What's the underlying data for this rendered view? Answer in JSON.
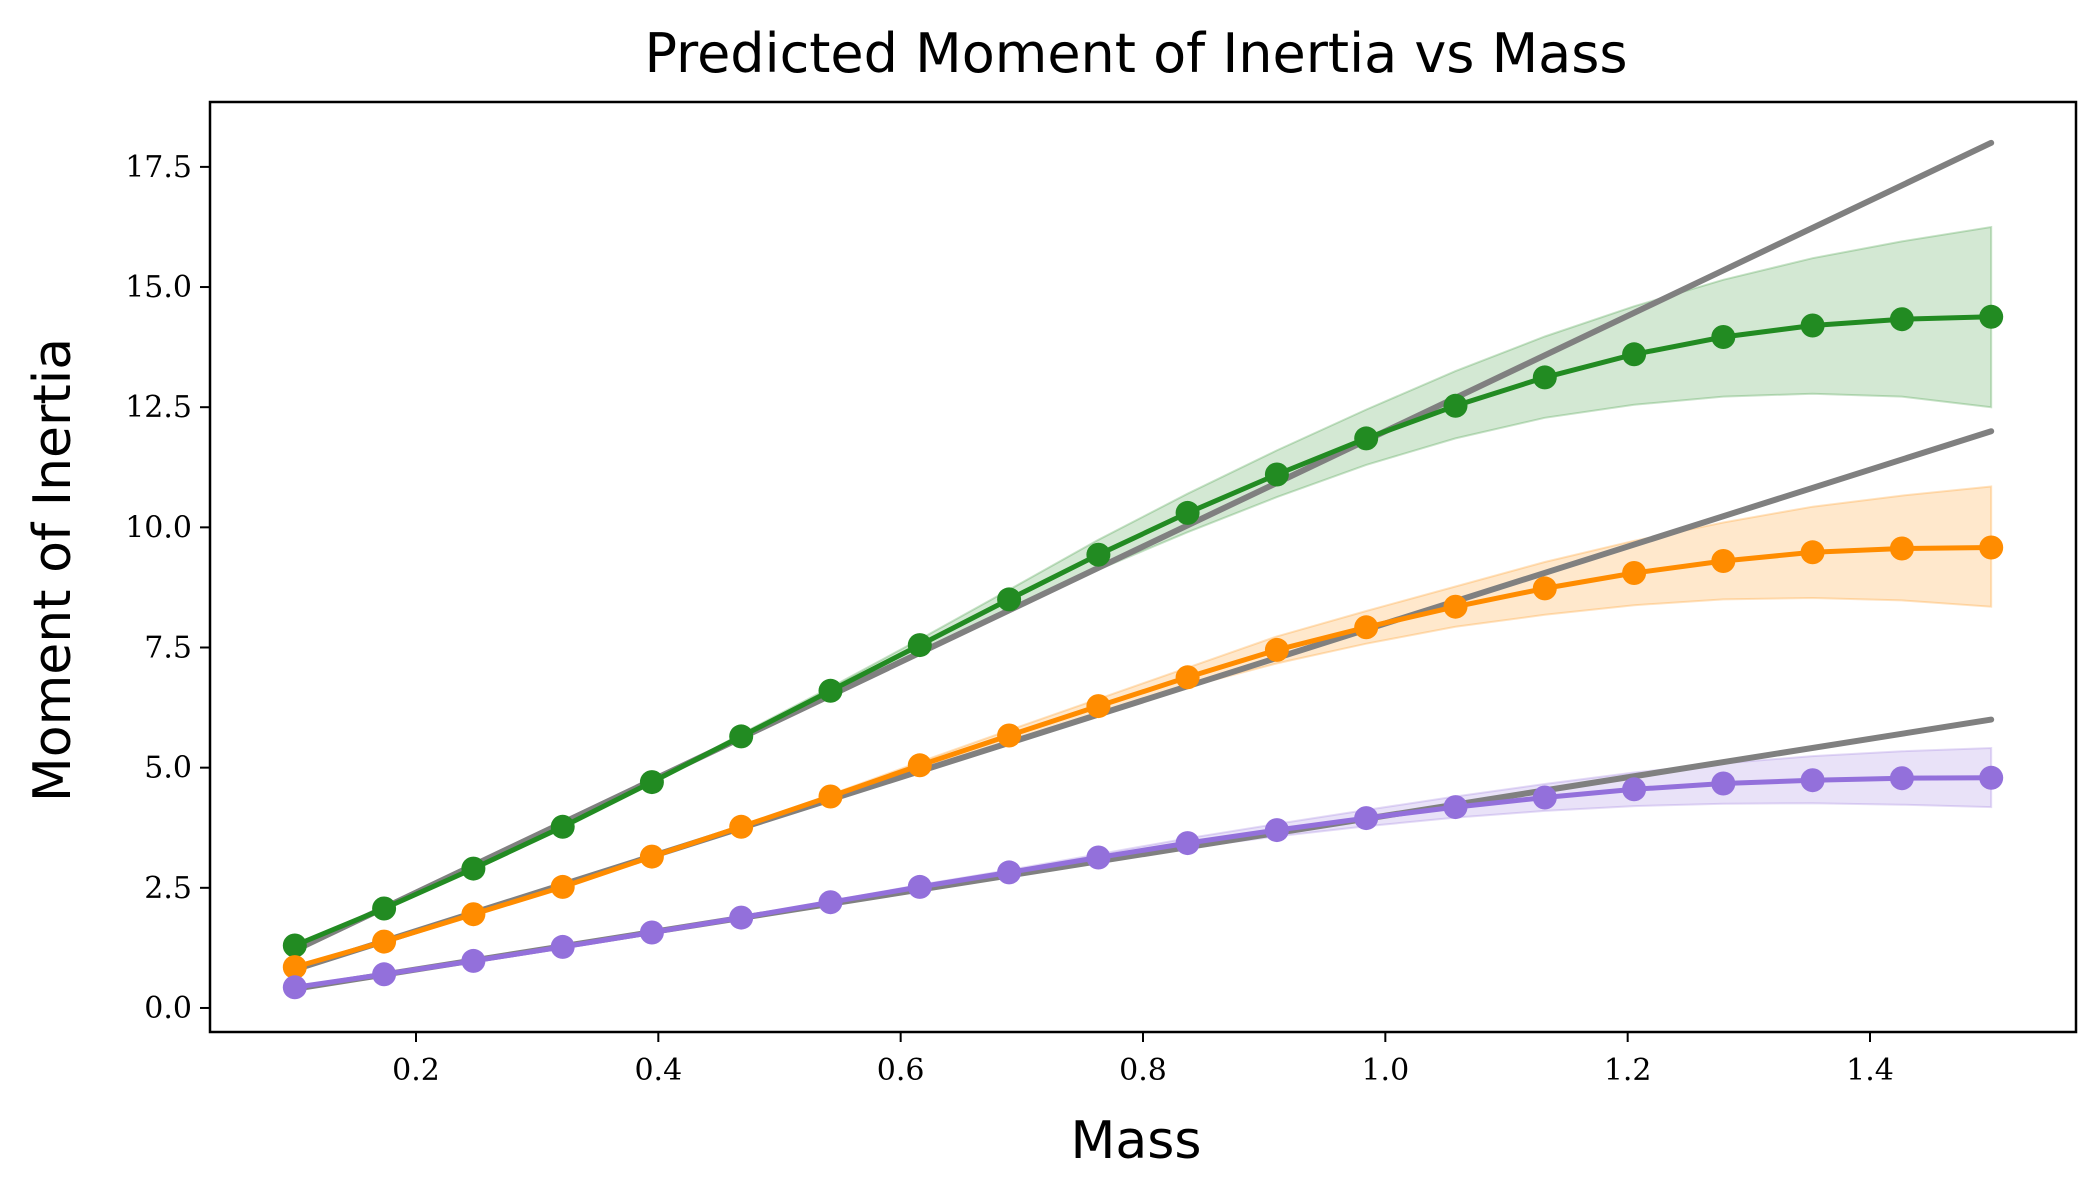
{
  "chart_data": {
    "type": "line",
    "title": "Predicted Moment of Inertia vs Mass",
    "xlabel": "Mass",
    "ylabel": "Moment of Inertia",
    "xlim": [
      0.03,
      1.57
    ],
    "ylim": [
      -0.5,
      18.85
    ],
    "xticks": [
      "0.2",
      "0.4",
      "0.6",
      "0.8",
      "1.0",
      "1.2",
      "1.4"
    ],
    "yticks": [
      "0.0",
      "2.5",
      "5.0",
      "7.5",
      "10.0",
      "12.5",
      "15.0",
      "17.5"
    ],
    "grid": false,
    "legend": "none",
    "x": [
      0.1,
      0.1737,
      0.2474,
      0.3211,
      0.3947,
      0.4684,
      0.5421,
      0.6158,
      0.6895,
      0.7632,
      0.8368,
      0.9105,
      0.9842,
      1.0579,
      1.1316,
      1.2053,
      1.2789,
      1.3526,
      1.4263,
      1.5
    ],
    "series": [
      {
        "color": "#228b22",
        "values": [
          1.3,
          2.07,
          2.9,
          3.77,
          4.7,
          5.65,
          6.6,
          7.55,
          8.5,
          9.43,
          10.3,
          11.1,
          11.85,
          12.53,
          13.12,
          13.6,
          13.96,
          14.2,
          14.33,
          14.38
        ],
        "lower": [
          1.3,
          2.07,
          2.9,
          3.77,
          4.68,
          5.6,
          6.53,
          7.43,
          8.3,
          9.12,
          9.9,
          10.63,
          11.3,
          11.85,
          12.28,
          12.55,
          12.72,
          12.78,
          12.72,
          12.5
        ],
        "upper": [
          1.3,
          2.07,
          2.9,
          3.77,
          4.72,
          5.7,
          6.67,
          7.67,
          8.7,
          9.74,
          10.7,
          11.6,
          12.45,
          13.25,
          13.97,
          14.6,
          15.15,
          15.6,
          15.95,
          16.25
        ]
      },
      {
        "color": "#ff8c00",
        "values": [
          0.85,
          1.38,
          1.95,
          2.52,
          3.15,
          3.77,
          4.4,
          5.05,
          5.67,
          6.28,
          6.88,
          7.45,
          7.92,
          8.35,
          8.73,
          9.05,
          9.3,
          9.48,
          9.56,
          9.58
        ],
        "lower": [
          0.85,
          1.38,
          1.95,
          2.52,
          3.14,
          3.75,
          4.36,
          4.98,
          5.56,
          6.13,
          6.68,
          7.17,
          7.58,
          7.93,
          8.18,
          8.38,
          8.5,
          8.53,
          8.48,
          8.35
        ],
        "upper": [
          0.85,
          1.38,
          1.95,
          2.52,
          3.16,
          3.79,
          4.44,
          5.12,
          5.78,
          6.43,
          7.08,
          7.73,
          8.26,
          8.77,
          9.28,
          9.72,
          10.1,
          10.43,
          10.66,
          10.85
        ]
      },
      {
        "color": "#9370db",
        "values": [
          0.43,
          0.7,
          0.98,
          1.27,
          1.57,
          1.88,
          2.2,
          2.52,
          2.82,
          3.13,
          3.43,
          3.7,
          3.95,
          4.18,
          4.38,
          4.55,
          4.67,
          4.74,
          4.78,
          4.79
        ],
        "lower": [
          0.43,
          0.7,
          0.98,
          1.27,
          1.56,
          1.86,
          2.17,
          2.48,
          2.77,
          3.06,
          3.33,
          3.57,
          3.78,
          3.96,
          4.1,
          4.2,
          4.25,
          4.26,
          4.23,
          4.18
        ],
        "upper": [
          0.43,
          0.7,
          0.98,
          1.27,
          1.58,
          1.9,
          2.23,
          2.56,
          2.87,
          3.2,
          3.53,
          3.83,
          4.12,
          4.4,
          4.66,
          4.9,
          5.09,
          5.24,
          5.34,
          5.41
        ]
      }
    ],
    "reference_lines": [
      {
        "color": "#808080",
        "x": [
          0.1,
          1.5
        ],
        "y": [
          1.2,
          18.0
        ]
      },
      {
        "color": "#808080",
        "x": [
          0.1,
          1.5
        ],
        "y": [
          0.8,
          12.0
        ]
      },
      {
        "color": "#808080",
        "x": [
          0.1,
          1.5
        ],
        "y": [
          0.4,
          6.0
        ]
      }
    ]
  }
}
